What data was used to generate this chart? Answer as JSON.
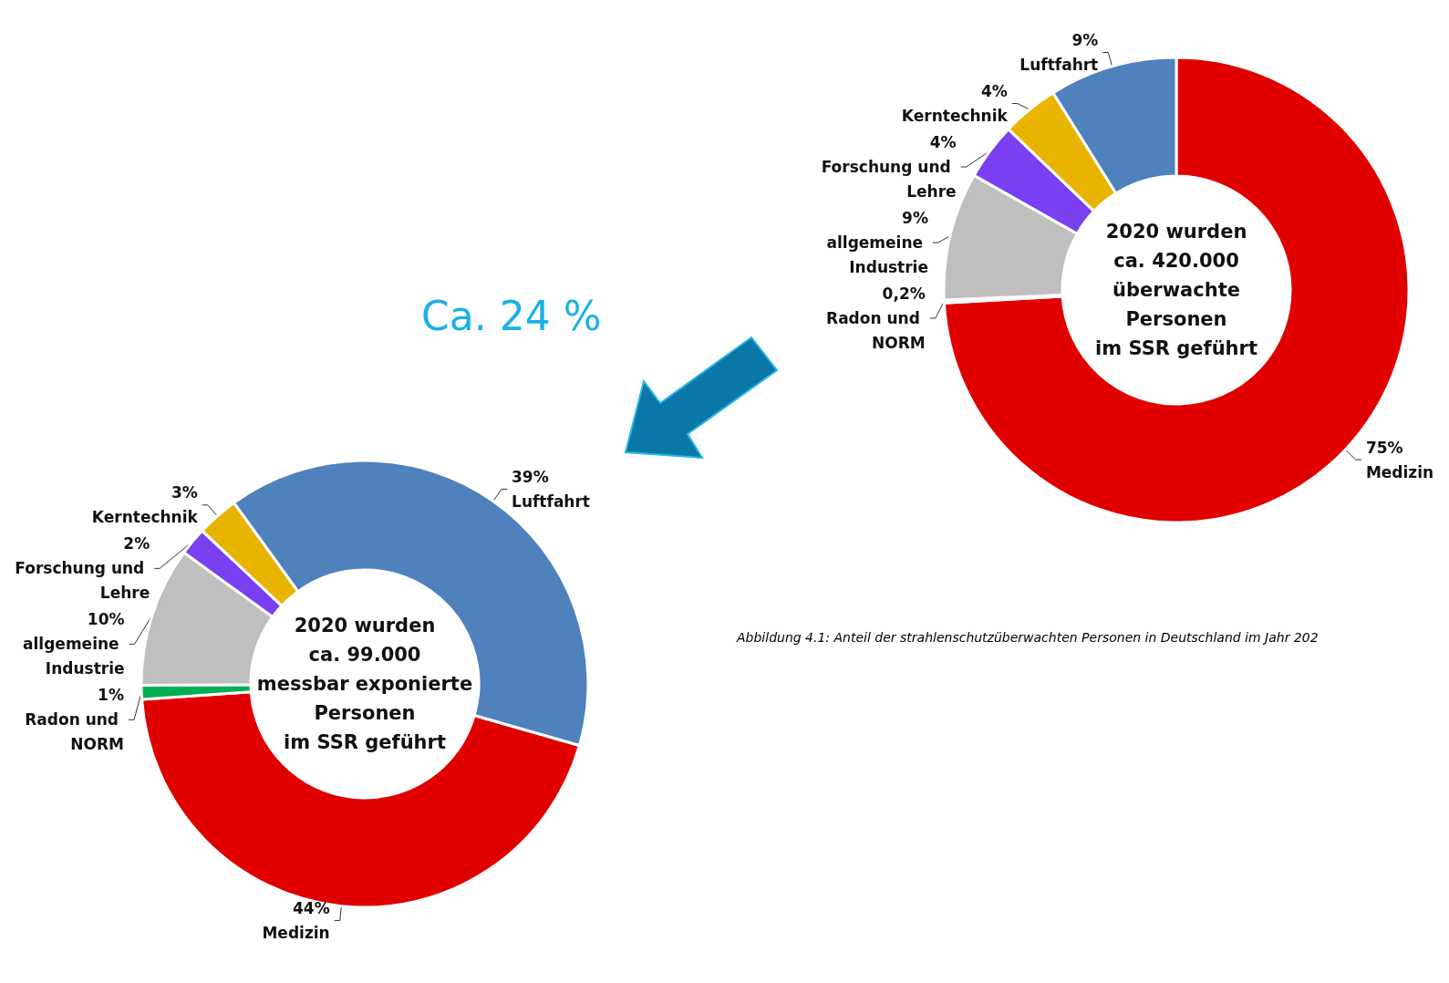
{
  "chart_data": [
    {
      "type": "donut",
      "categories": [
        "Medizin",
        "Radon und NORM",
        "allgemeine Industrie",
        "Forschung und Lehre",
        "Kerntechnik",
        "Luftfahrt"
      ],
      "values": [
        75,
        0.2,
        9,
        4,
        4,
        9
      ],
      "value_labels": [
        "75%",
        "0,2%",
        "9%",
        "4%",
        "4%",
        "9%"
      ],
      "colors": [
        "#e00000",
        "#00b050",
        "#bfbfbf",
        "#7a3ff0",
        "#e8b400",
        "#4f81bd"
      ],
      "legend": false,
      "annotations": [
        "2020 wurden\nca. 420.000\nüberwachte\nPersonen\nim SSR geführt",
        "Abbildung 4.1: Anteil der strahlenschutzüberwachten Personen in Deutschland im Jahr 202"
      ]
    },
    {
      "type": "donut",
      "categories": [
        "Medizin",
        "Radon und NORM",
        "allgemeine Industrie",
        "Forschung und Lehre",
        "Kerntechnik",
        "Luftfahrt"
      ],
      "values": [
        44,
        1,
        10,
        2,
        3,
        39
      ],
      "value_labels": [
        "44%",
        "1%",
        "10%",
        "2%",
        "3%",
        "39%"
      ],
      "colors": [
        "#e00000",
        "#00b050",
        "#bfbfbf",
        "#7a3ff0",
        "#e8b400",
        "#4f81bd"
      ],
      "legend": false,
      "annotations": [
        "2020 wurden\nca. 99.000\nmessbar exponierte\nPersonen\nim SSR geführt",
        "Ca. 24 %"
      ]
    }
  ]
}
